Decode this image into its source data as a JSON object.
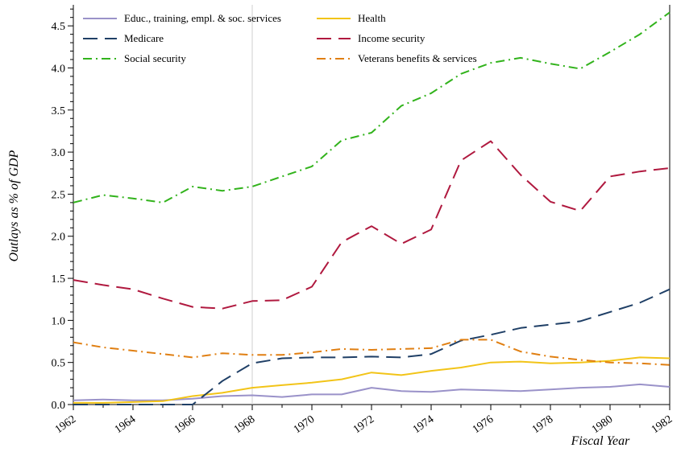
{
  "chart_data": {
    "type": "line",
    "title": "",
    "xlabel": "Fiscal Year",
    "ylabel": "Outlays as % of GDP",
    "xlim": [
      1962,
      1982
    ],
    "ylim": [
      0,
      4.75
    ],
    "x_ticks": [
      "1962",
      "1964",
      "1966",
      "1968",
      "1970",
      "1972",
      "1974",
      "1976",
      "1978",
      "1980",
      "1982"
    ],
    "y_ticks": [
      "0.0",
      "0.5",
      "1.0",
      "1.5",
      "2.0",
      "2.5",
      "3.0",
      "3.5",
      "4.0",
      "4.5"
    ],
    "reference_line_x": 1968,
    "grid": false,
    "legend_position": "top",
    "x": [
      1962,
      1963,
      1964,
      1965,
      1966,
      1967,
      1968,
      1969,
      1970,
      1971,
      1972,
      1973,
      1974,
      1975,
      1976,
      1977,
      1978,
      1979,
      1980,
      1981,
      1982
    ],
    "series": [
      {
        "name": "Educ., training, empl. & soc. services",
        "color": "#9a92c9",
        "dash": "solid",
        "values": [
          0.05,
          0.06,
          0.05,
          0.05,
          0.07,
          0.1,
          0.11,
          0.09,
          0.12,
          0.12,
          0.2,
          0.16,
          0.15,
          0.18,
          0.17,
          0.16,
          0.18,
          0.2,
          0.21,
          0.24,
          0.21
        ]
      },
      {
        "name": "Health",
        "color": "#f2c418",
        "dash": "solid",
        "values": [
          0.02,
          0.02,
          0.03,
          0.04,
          0.1,
          0.14,
          0.2,
          0.23,
          0.26,
          0.3,
          0.38,
          0.35,
          0.4,
          0.44,
          0.5,
          0.51,
          0.49,
          0.5,
          0.52,
          0.56,
          0.55
        ]
      },
      {
        "name": "Medicare",
        "color": "#1f3f66",
        "dash": "long-dash",
        "values": [
          0.0,
          0.0,
          0.0,
          0.0,
          0.0,
          0.28,
          0.49,
          0.55,
          0.56,
          0.56,
          0.57,
          0.56,
          0.6,
          0.76,
          0.83,
          0.91,
          0.95,
          0.99,
          1.1,
          1.21,
          1.37
        ]
      },
      {
        "name": "Income security",
        "color": "#b0193f",
        "dash": "long-dash",
        "values": [
          1.48,
          1.42,
          1.37,
          1.26,
          1.16,
          1.14,
          1.23,
          1.24,
          1.4,
          1.93,
          2.12,
          1.91,
          2.08,
          2.9,
          3.13,
          2.73,
          2.41,
          2.3,
          2.71,
          2.77,
          2.81
        ]
      },
      {
        "name": "Social security",
        "color": "#32b31c",
        "dash": "dash-dot",
        "values": [
          2.4,
          2.49,
          2.45,
          2.4,
          2.59,
          2.54,
          2.59,
          2.71,
          2.83,
          3.14,
          3.23,
          3.55,
          3.7,
          3.93,
          4.06,
          4.12,
          4.05,
          3.99,
          4.19,
          4.4,
          4.66
        ]
      },
      {
        "name": "Veterans benefits & services",
        "color": "#e07f12",
        "dash": "dash-dot",
        "values": [
          0.74,
          0.68,
          0.64,
          0.6,
          0.56,
          0.61,
          0.59,
          0.59,
          0.62,
          0.66,
          0.65,
          0.66,
          0.67,
          0.77,
          0.77,
          0.63,
          0.57,
          0.53,
          0.5,
          0.49,
          0.47
        ]
      }
    ]
  }
}
